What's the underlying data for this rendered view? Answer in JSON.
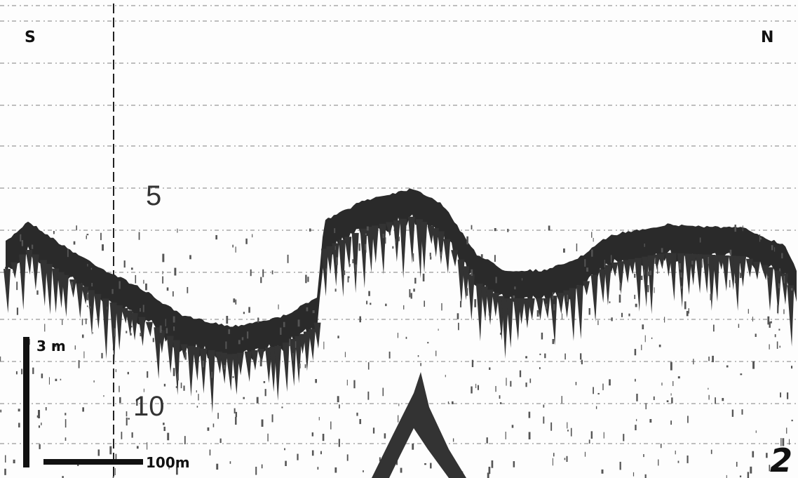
{
  "direction_labels": {
    "left": "S",
    "right": "N"
  },
  "depth_labels": [
    "5",
    "10"
  ],
  "scale": {
    "vertical": "3 m",
    "horizontal": "100m"
  },
  "figure_number": "2"
}
